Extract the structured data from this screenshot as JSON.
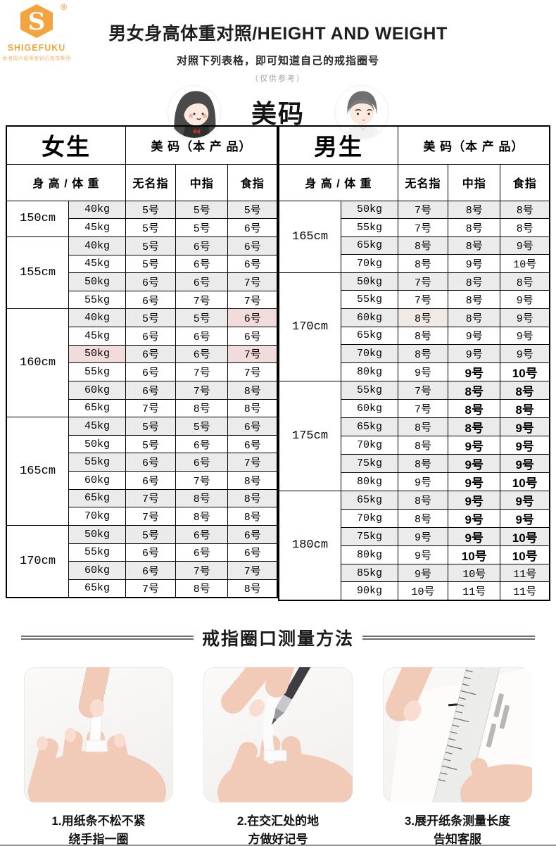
{
  "logo": {
    "brand": "SHIGEFUKU",
    "registered": "®",
    "tagline": "香港周六福黄金钻石首饰集团"
  },
  "header": {
    "title": "男女身高体重对照/HEIGHT AND WEIGHT",
    "subtitle": "对照下列表格，即可知道自己的戒指圈号",
    "note": "（仅供参考）",
    "badge": "美码"
  },
  "colors": {
    "accent_orange": "#F5A73F",
    "stripe_gray": "#EBEBEB",
    "highlight_pink": "#F1DCDB",
    "highlight_pink_soft": "#F2E9E5",
    "table_border": "#000000"
  },
  "table": {
    "female": {
      "group_header": "女生",
      "size_header": "美 码（本 产 品）",
      "col_header": "身 高 / 体 重",
      "finger_headers": [
        "无名指",
        "中指",
        "食指"
      ],
      "groups": [
        {
          "height": "150cm",
          "rows": [
            {
              "weight": "40kg",
              "sizes": [
                "5号",
                "5号",
                "5号"
              ]
            },
            {
              "weight": "45kg",
              "sizes": [
                "5号",
                "5号",
                "6号"
              ]
            }
          ]
        },
        {
          "height": "155cm",
          "rows": [
            {
              "weight": "40kg",
              "sizes": [
                "5号",
                "6号",
                "6号"
              ]
            },
            {
              "weight": "45kg",
              "sizes": [
                "5号",
                "6号",
                "6号"
              ]
            },
            {
              "weight": "50kg",
              "sizes": [
                "6号",
                "6号",
                "7号"
              ]
            },
            {
              "weight": "55kg",
              "sizes": [
                "6号",
                "7号",
                "7号"
              ]
            }
          ]
        },
        {
          "height": "160cm",
          "rows": [
            {
              "weight": "40kg",
              "sizes": [
                "5号",
                "5号",
                "6号"
              ],
              "hl": [
                2
              ]
            },
            {
              "weight": "45kg",
              "sizes": [
                "6号",
                "6号",
                "6号"
              ]
            },
            {
              "weight": "50kg",
              "sizes": [
                "6号",
                "6号",
                "7号"
              ],
              "whl": true,
              "hl": [
                2
              ]
            },
            {
              "weight": "55kg",
              "sizes": [
                "6号",
                "7号",
                "7号"
              ]
            },
            {
              "weight": "60kg",
              "sizes": [
                "6号",
                "7号",
                "8号"
              ]
            },
            {
              "weight": "65kg",
              "sizes": [
                "7号",
                "8号",
                "8号"
              ]
            }
          ]
        },
        {
          "height": "165cm",
          "rows": [
            {
              "weight": "45kg",
              "sizes": [
                "5号",
                "5号",
                "6号"
              ]
            },
            {
              "weight": "50kg",
              "sizes": [
                "5号",
                "6号",
                "6号"
              ]
            },
            {
              "weight": "55kg",
              "sizes": [
                "6号",
                "6号",
                "7号"
              ]
            },
            {
              "weight": "60kg",
              "sizes": [
                "6号",
                "7号",
                "8号"
              ]
            },
            {
              "weight": "65kg",
              "sizes": [
                "7号",
                "8号",
                "8号"
              ]
            },
            {
              "weight": "70kg",
              "sizes": [
                "7号",
                "8号",
                "8号"
              ]
            }
          ]
        },
        {
          "height": "170cm",
          "rows": [
            {
              "weight": "50kg",
              "sizes": [
                "5号",
                "6号",
                "6号"
              ]
            },
            {
              "weight": "55kg",
              "sizes": [
                "6号",
                "6号",
                "6号"
              ]
            },
            {
              "weight": "60kg",
              "sizes": [
                "6号",
                "7号",
                "7号"
              ]
            },
            {
              "weight": "65kg",
              "sizes": [
                "7号",
                "8号",
                "8号"
              ]
            }
          ]
        }
      ]
    },
    "male": {
      "group_header": "男生",
      "size_header": "美 码（本 产 品）",
      "col_header": "身 高 / 体 重",
      "finger_headers": [
        "无名指",
        "中指",
        "食指"
      ],
      "groups": [
        {
          "height": "165cm",
          "rows": [
            {
              "weight": "50kg",
              "sizes": [
                "7号",
                "8号",
                "8号"
              ]
            },
            {
              "weight": "55kg",
              "sizes": [
                "7号",
                "8号",
                "8号"
              ]
            },
            {
              "weight": "65kg",
              "sizes": [
                "8号",
                "8号",
                "9号"
              ]
            },
            {
              "weight": "70kg",
              "sizes": [
                "8号",
                "9号",
                "10号"
              ]
            }
          ]
        },
        {
          "height": "170cm",
          "rows": [
            {
              "weight": "50kg",
              "sizes": [
                "7号",
                "8号",
                "8号"
              ]
            },
            {
              "weight": "55kg",
              "sizes": [
                "7号",
                "8号",
                "9号"
              ]
            },
            {
              "weight": "60kg",
              "sizes": [
                "8号",
                "8号",
                "9号"
              ],
              "hl": [
                0
              ]
            },
            {
              "weight": "65kg",
              "sizes": [
                "8号",
                "9号",
                "9号"
              ]
            },
            {
              "weight": "70kg",
              "sizes": [
                "8号",
                "9号",
                "9号"
              ]
            },
            {
              "weight": "80kg",
              "sizes": [
                "9号",
                "9号",
                "10号"
              ],
              "bold": [
                1,
                2
              ]
            }
          ]
        },
        {
          "height": "175cm",
          "rows": [
            {
              "weight": "55kg",
              "sizes": [
                "7号",
                "8号",
                "8号"
              ],
              "bold": [
                1,
                2
              ]
            },
            {
              "weight": "60kg",
              "sizes": [
                "7号",
                "8号",
                "8号"
              ],
              "bold": [
                1,
                2
              ]
            },
            {
              "weight": "65kg",
              "sizes": [
                "8号",
                "8号",
                "9号"
              ],
              "bold": [
                1,
                2
              ]
            },
            {
              "weight": "70kg",
              "sizes": [
                "8号",
                "9号",
                "9号"
              ],
              "bold": [
                1,
                2
              ]
            },
            {
              "weight": "75kg",
              "sizes": [
                "8号",
                "9号",
                "9号"
              ],
              "bold": [
                1,
                2
              ]
            },
            {
              "weight": "80kg",
              "sizes": [
                "9号",
                "9号",
                "10号"
              ],
              "bold": [
                1,
                2
              ]
            }
          ]
        },
        {
          "height": "180cm",
          "rows": [
            {
              "weight": "65kg",
              "sizes": [
                "8号",
                "9号",
                "9号"
              ],
              "bold": [
                1,
                2
              ]
            },
            {
              "weight": "70kg",
              "sizes": [
                "8号",
                "9号",
                "9号"
              ],
              "bold": [
                1,
                2
              ]
            },
            {
              "weight": "75kg",
              "sizes": [
                "9号",
                "9号",
                "10号"
              ],
              "bold": [
                1,
                2
              ]
            },
            {
              "weight": "80kg",
              "sizes": [
                "9号",
                "10号",
                "10号"
              ],
              "bold": [
                1,
                2
              ]
            },
            {
              "weight": "85kg",
              "sizes": [
                "9号",
                "10号",
                "11号"
              ]
            },
            {
              "weight": "90kg",
              "sizes": [
                "10号",
                "11号",
                "11号"
              ]
            }
          ]
        }
      ]
    }
  },
  "measure": {
    "title": "戒指圈口测量方法",
    "steps": [
      {
        "line1": "1.用纸条不松不紧",
        "line2": "绕手指一圈"
      },
      {
        "line1": "2.在交汇处的地",
        "line2": "方做好记号"
      },
      {
        "line1": "3.展开纸条测量长度",
        "line2": "告知客服"
      }
    ]
  }
}
